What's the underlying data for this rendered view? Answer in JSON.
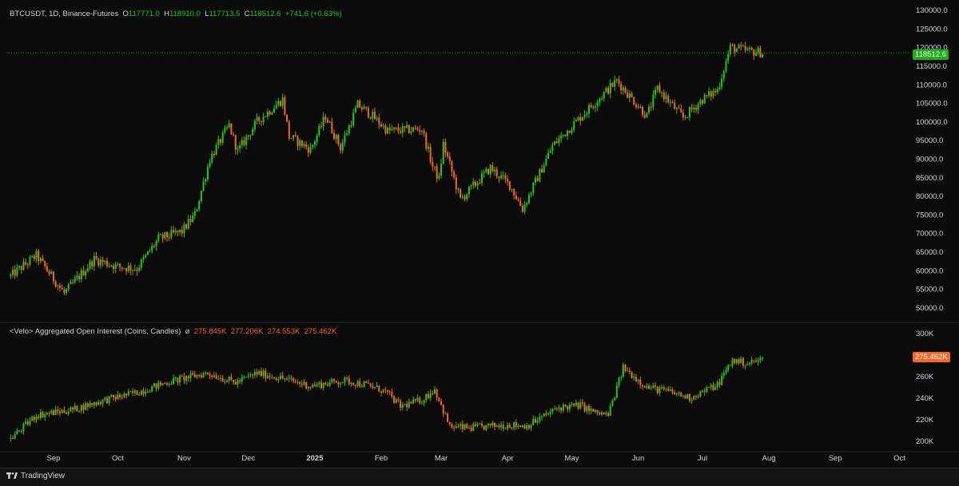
{
  "header": {
    "symbol": "BTCUSDT, 1D, Binance-Futures",
    "o_label": "O",
    "o_value": "117771.0",
    "h_label": "H",
    "h_value": "118910.0",
    "l_label": "L",
    "l_value": "117713.5",
    "c_label": "C",
    "c_value": "118512.6",
    "change": "+741.6 (+0.63%)"
  },
  "oi_header": {
    "title": "<Velo> Aggregated Open Interest (Coins, Candles)",
    "symbol_icon": "⌀",
    "v1": "275.845K",
    "v2": "277.206K",
    "v3": "274.553K",
    "v4": "275.462K"
  },
  "price_tag": "118512.6",
  "oi_tag": "275.462K",
  "footer": {
    "brand": "TradingView"
  },
  "colors": {
    "up": "#26c61f",
    "down": "#f2672b",
    "background": "#0b0b0b"
  },
  "chart_data": [
    {
      "type": "candlestick",
      "title": "BTCUSDT, 1D, Binance-Futures",
      "ylim": [
        46000,
        131000
      ],
      "y_ticks": [
        "50000.0",
        "55000.0",
        "60000.0",
        "65000.0",
        "70000.0",
        "75000.0",
        "80000.0",
        "85000.0",
        "90000.0",
        "95000.0",
        "100000.0",
        "105000.0",
        "110000.0",
        "115000.0",
        "120000.0",
        "125000.0",
        "130000.0"
      ],
      "x_ticks": [
        "Sep",
        "Oct",
        "Nov",
        "Dec",
        "2025",
        "Feb",
        "Mar",
        "Apr",
        "May",
        "Jun",
        "Jul",
        "Aug",
        "Sep",
        "Oct"
      ],
      "last_close": 118512.6,
      "path": [
        [
          "2024-08-12",
          58500
        ],
        [
          "2024-08-24",
          64000
        ],
        [
          "2024-09-06",
          53800
        ],
        [
          "2024-09-20",
          63000
        ],
        [
          "2024-10-01",
          61000
        ],
        [
          "2024-10-10",
          60500
        ],
        [
          "2024-10-20",
          68500
        ],
        [
          "2024-10-31",
          70500
        ],
        [
          "2024-11-06",
          75000
        ],
        [
          "2024-11-13",
          90000
        ],
        [
          "2024-11-22",
          99000
        ],
        [
          "2024-11-26",
          92000
        ],
        [
          "2024-12-05",
          100000
        ],
        [
          "2024-12-17",
          106000
        ],
        [
          "2024-12-20",
          96000
        ],
        [
          "2024-12-30",
          92500
        ],
        [
          "2025-01-06",
          101500
        ],
        [
          "2025-01-13",
          93000
        ],
        [
          "2025-01-21",
          104500
        ],
        [
          "2025-01-27",
          102000
        ],
        [
          "2025-02-04",
          97500
        ],
        [
          "2025-02-20",
          98000
        ],
        [
          "2025-02-25",
          88000
        ],
        [
          "2025-02-28",
          84500
        ],
        [
          "2025-03-02",
          94000
        ],
        [
          "2025-03-10",
          79000
        ],
        [
          "2025-03-24",
          87500
        ],
        [
          "2025-04-02",
          83000
        ],
        [
          "2025-04-08",
          76500
        ],
        [
          "2025-04-22",
          93500
        ],
        [
          "2025-05-08",
          103000
        ],
        [
          "2025-05-22",
          111000
        ],
        [
          "2025-06-05",
          101500
        ],
        [
          "2025-06-10",
          109000
        ],
        [
          "2025-06-22",
          101000
        ],
        [
          "2025-07-01",
          106000
        ],
        [
          "2025-07-08",
          108500
        ],
        [
          "2025-07-14",
          120000
        ],
        [
          "2025-07-22",
          119000
        ],
        [
          "2025-07-29",
          118512.6
        ]
      ]
    },
    {
      "type": "candlestick",
      "title": "<Velo> Aggregated Open Interest (Coins, Candles)",
      "ylim": [
        190000,
        310000
      ],
      "y_ticks": [
        "200K",
        "220K",
        "240K",
        "260K",
        "280K",
        "300K"
      ],
      "last_close": 275462,
      "path": [
        [
          "2024-08-12",
          202000
        ],
        [
          "2024-08-24",
          224000
        ],
        [
          "2024-09-10",
          229000
        ],
        [
          "2024-09-25",
          238000
        ],
        [
          "2024-10-10",
          245000
        ],
        [
          "2024-10-25",
          255000
        ],
        [
          "2024-11-05",
          260000
        ],
        [
          "2024-11-12",
          263000
        ],
        [
          "2024-11-25",
          254000
        ],
        [
          "2024-12-05",
          263000
        ],
        [
          "2024-12-15",
          259000
        ],
        [
          "2024-12-30",
          251000
        ],
        [
          "2025-01-15",
          256000
        ],
        [
          "2025-01-25",
          252000
        ],
        [
          "2025-02-03",
          246000
        ],
        [
          "2025-02-10",
          232000
        ],
        [
          "2025-02-20",
          238000
        ],
        [
          "2025-02-26",
          248000
        ],
        [
          "2025-03-05",
          213000
        ],
        [
          "2025-03-15",
          212000
        ],
        [
          "2025-04-01",
          215000
        ],
        [
          "2025-04-10",
          214000
        ],
        [
          "2025-04-25",
          231000
        ],
        [
          "2025-05-05",
          233000
        ],
        [
          "2025-05-12",
          226000
        ],
        [
          "2025-05-18",
          224000
        ],
        [
          "2025-05-25",
          268000
        ],
        [
          "2025-06-05",
          250000
        ],
        [
          "2025-06-15",
          246000
        ],
        [
          "2025-06-25",
          240000
        ],
        [
          "2025-07-08",
          252000
        ],
        [
          "2025-07-15",
          275000
        ],
        [
          "2025-07-22",
          272000
        ],
        [
          "2025-07-29",
          275462
        ]
      ]
    }
  ]
}
